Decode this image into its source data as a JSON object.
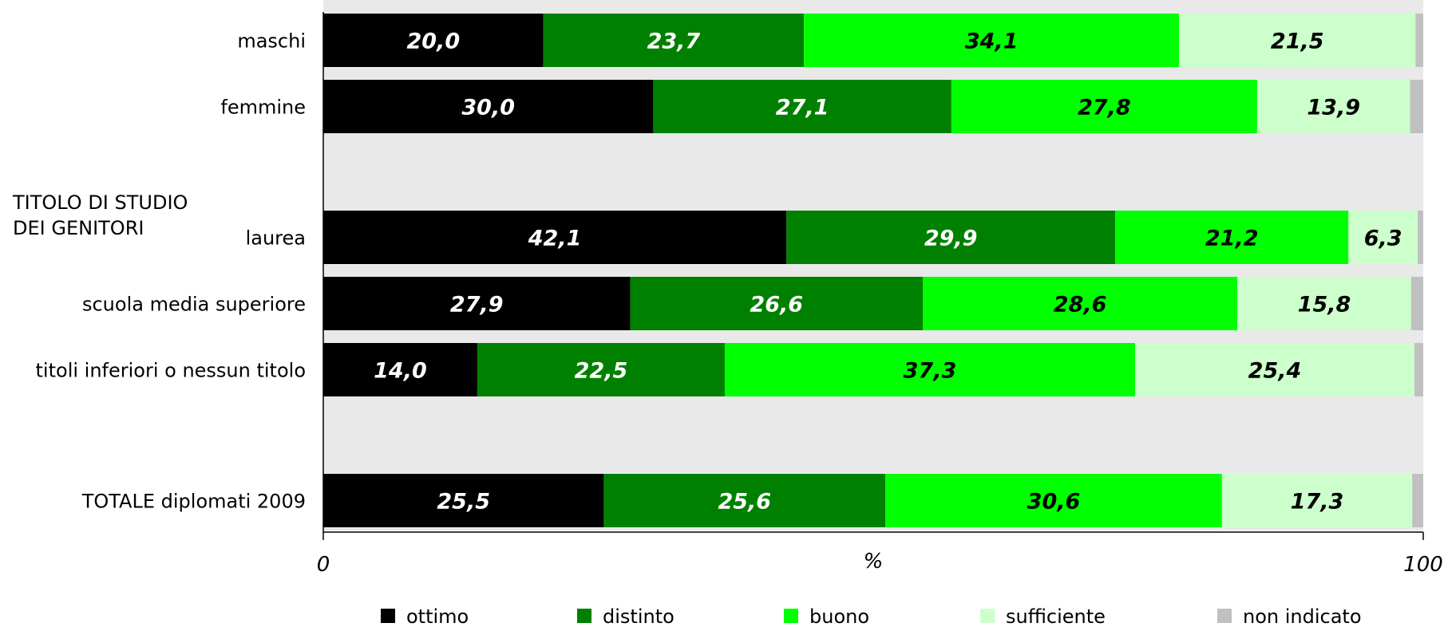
{
  "chart_data": {
    "type": "bar",
    "orientation": "horizontal",
    "stacked": true,
    "title": "",
    "xlabel": "%",
    "xlim": [
      0,
      100
    ],
    "x_ticks": [
      "0",
      "100"
    ],
    "group_label": "TITOLO DI STUDIO\nDEI GENITORI",
    "categories": [
      "maschi",
      "femmine",
      "laurea",
      "scuola media superiore",
      "titoli inferiori o nessun titolo",
      "TOTALE diplomati 2009"
    ],
    "series": [
      {
        "name": "ottimo",
        "color": "#000000",
        "label_color": "#ffffff",
        "values": [
          20.0,
          30.0,
          42.1,
          27.9,
          14.0,
          25.5
        ],
        "labels": [
          "20,0",
          "30,0",
          "42,1",
          "27,9",
          "14,0",
          "25,5"
        ]
      },
      {
        "name": "distinto",
        "color": "#008000",
        "label_color": "#ffffff",
        "values": [
          23.7,
          27.1,
          29.9,
          26.6,
          22.5,
          25.6
        ],
        "labels": [
          "23,7",
          "27,1",
          "29,9",
          "26,6",
          "22,5",
          "25,6"
        ]
      },
      {
        "name": "buono",
        "color": "#00ff00",
        "label_color": "#000000",
        "values": [
          34.1,
          27.8,
          21.2,
          28.6,
          37.3,
          30.6
        ],
        "labels": [
          "34,1",
          "27,8",
          "21,2",
          "28,6",
          "37,3",
          "30,6"
        ]
      },
      {
        "name": "sufficiente",
        "color": "#ccffcc",
        "label_color": "#000000",
        "values": [
          21.5,
          13.9,
          6.3,
          15.8,
          25.4,
          17.3
        ],
        "labels": [
          "21,5",
          "13,9",
          "6,3",
          "15,8",
          "25,4",
          "17,3"
        ]
      },
      {
        "name": "non indicato",
        "color": "#c0c0c0",
        "label_color": "#000000",
        "values": [
          0.7,
          1.2,
          0.5,
          1.1,
          0.8,
          1.0
        ],
        "labels": [
          "",
          "",
          "",
          "",
          "",
          ""
        ]
      }
    ],
    "legend_position": "bottom",
    "plot_background": "#e9e9e9",
    "grid": false
  }
}
